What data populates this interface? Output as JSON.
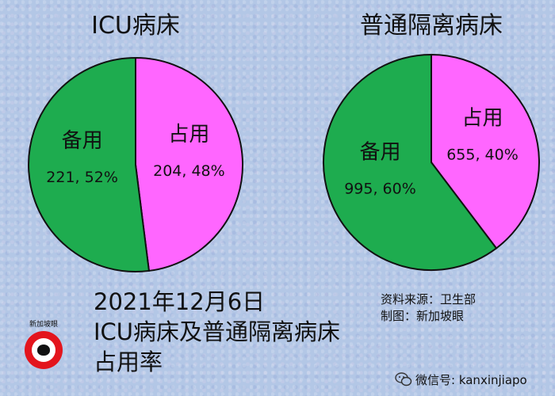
{
  "chart_data": [
    {
      "type": "pie",
      "title": "ICU病床",
      "slices": [
        {
          "name": "占用",
          "value": 204,
          "percent": 48,
          "label": "204, 48%",
          "color": "#ff66ff"
        },
        {
          "name": "备用",
          "value": 221,
          "percent": 52,
          "label": "221, 52%",
          "color": "#1eac4f"
        }
      ]
    },
    {
      "type": "pie",
      "title": "普通隔离病床",
      "slices": [
        {
          "name": "占用",
          "value": 655,
          "percent": 40,
          "label": "655, 40%",
          "color": "#ff66ff"
        },
        {
          "name": "备用",
          "value": 995,
          "percent": 60,
          "label": "995, 60%",
          "color": "#1eac4f"
        }
      ]
    }
  ],
  "caption": {
    "line1": "2021年12月6日",
    "line2": "ICU病床及普通隔离病床",
    "line3": "占用率"
  },
  "source": {
    "line1": "资料来源：卫生部",
    "line2": "制图：新加坡眼"
  },
  "logo": {
    "text": "新加坡眼"
  },
  "watermark": {
    "text": "微信号: kanxinjiapo",
    "icon": "wechat-icon"
  }
}
